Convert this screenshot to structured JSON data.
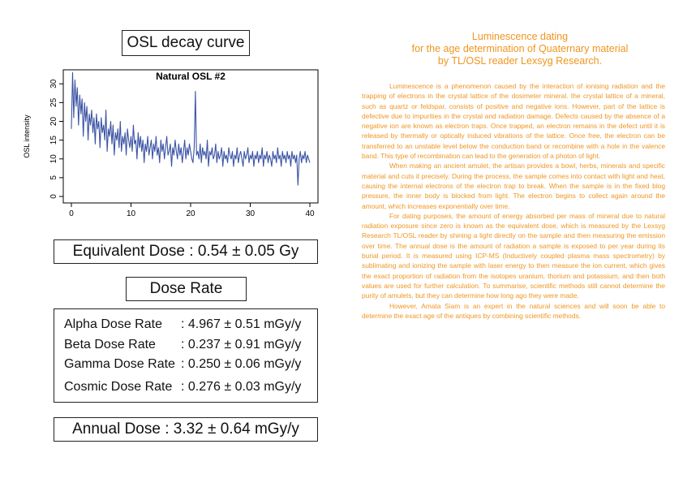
{
  "left_panel": {
    "chart_heading": "OSL decay curve",
    "equivalent_dose": "Equivalent Dose : 0.54 ± 0.05 Gy",
    "dose_rate_heading": "Dose Rate",
    "dose_rates": [
      {
        "label": "Alpha Dose Rate",
        "value": ": 4.967 ± 0.51 mGy/y"
      },
      {
        "label": "Beta Dose Rate",
        "value": ": 0.237 ± 0.91 mGy/y"
      },
      {
        "label": "Gamma Dose Rate",
        "value": ": 0.250 ± 0.06 mGy/y"
      },
      {
        "label": "Cosmic Dose Rate",
        "value": ": 0.276 ± 0.03 mGy/y"
      }
    ],
    "annual_dose": "Annual Dose : 3.32 ± 0.64 mGy/y"
  },
  "right_panel": {
    "title_lines": [
      "Luminescence dating",
      "for the age determination of Quaternary material",
      "by TL/OSL reader Lexsyg Research."
    ],
    "paragraphs": [
      "Luminescence is a phenomenon caused by the interaction of ionising radiation and the trapping of electrons in the crystal lattice of the dosimeter mineral. the crystal lattice of a mineral, such as quartz or feldspar, consists of positive and negative ions. However, part of the lattice is defective due to impurities in the crystal and radiation damage. Defects caused by the absence of a negative ion are known as electron traps. Once trapped, an electron remains in the defect until it is released by thermally or optically induced vibrations of the lattice. Once free, the electron can be transferred to an unstable level below the conduction band or recombine with a hole in the valence band. This type of recombination can lead to the generation of a photon of light.",
      "When making an ancient amulet, the artisan provides a bowl, herbs, minerals and specific material and cuts it precisely. During the process, the sample comes into contact with light and heat, causing the internal electrons of the electron trap to break. When the sample is in the fixed blog pressure, the inner body is blocked from light. The electron begins to collect again around the amount, which increases exponentially over time.",
      "For dating purposes, the amount of energy absorbed per mass of mineral due to natural radiation exposure since zero is known as the equivalent dose, which is measured by the Lexsyg Research TL/OSL reader by shining a light directly on the sample and then measuring the emission over time. The annual dose is the amount of radiation a sample is exposed to per year during its burial period. It is measured using ICP-MS (Inductively coupled plasma mass spectrometry) by sublimating and ionizing the sample with laser energy to then measure the ion current, which gives the exact proportion of radiation from the isotopes uranium, thorium and potassium, and then both values are used for further calculation. To summarise, scientific methods still cannot determine the purity of amulets, but they can determine how long ago they were made.",
      "However, Amata Siam is an expert in the natural sciences and will soon be able to determine the exact age of the antiques by combining scientific methods."
    ]
  },
  "chart_data": {
    "type": "line",
    "title": "Natural OSL #2",
    "xlabel": "",
    "ylabel": "OSL intensity",
    "xlim": [
      0,
      40
    ],
    "ylim": [
      0,
      32
    ],
    "xticks": [
      0,
      10,
      20,
      30,
      40
    ],
    "yticks": [
      0,
      5,
      10,
      15,
      20,
      25,
      30
    ],
    "grid": false,
    "series": [
      {
        "name": "",
        "color": "#3a53a4",
        "x": [
          0.0,
          0.2,
          0.4,
          0.6,
          0.8,
          1.0,
          1.2,
          1.4,
          1.6,
          1.8,
          2.0,
          2.2,
          2.4,
          2.6,
          2.8,
          3.0,
          3.2,
          3.4,
          3.6,
          3.8,
          4.0,
          4.2,
          4.4,
          4.6,
          4.8,
          5.0,
          5.2,
          5.4,
          5.6,
          5.8,
          6.0,
          6.2,
          6.4,
          6.6,
          6.8,
          7.0,
          7.2,
          7.4,
          7.6,
          7.8,
          8.0,
          8.2,
          8.4,
          8.6,
          8.8,
          9.0,
          9.2,
          9.4,
          9.6,
          9.8,
          10.0,
          10.2,
          10.4,
          10.6,
          10.8,
          11.0,
          11.2,
          11.4,
          11.6,
          11.8,
          12.0,
          12.2,
          12.4,
          12.6,
          12.8,
          13.0,
          13.2,
          13.4,
          13.6,
          13.8,
          14.0,
          14.2,
          14.4,
          14.6,
          14.8,
          15.0,
          15.2,
          15.4,
          15.6,
          15.8,
          16.0,
          16.2,
          16.4,
          16.6,
          16.8,
          17.0,
          17.2,
          17.4,
          17.6,
          17.8,
          18.0,
          18.2,
          18.4,
          18.6,
          18.8,
          19.0,
          19.2,
          19.4,
          19.6,
          19.8,
          20.0,
          20.2,
          20.4,
          20.6,
          20.8,
          21.0,
          21.2,
          21.4,
          21.6,
          21.8,
          22.0,
          22.2,
          22.4,
          22.6,
          22.8,
          23.0,
          23.2,
          23.4,
          23.6,
          23.8,
          24.0,
          24.2,
          24.4,
          24.6,
          24.8,
          25.0,
          25.2,
          25.4,
          25.6,
          25.8,
          26.0,
          26.2,
          26.4,
          26.6,
          26.8,
          27.0,
          27.2,
          27.4,
          27.6,
          27.8,
          28.0,
          28.2,
          28.4,
          28.6,
          28.8,
          29.0,
          29.2,
          29.4,
          29.6,
          29.8,
          30.0,
          30.2,
          30.4,
          30.6,
          30.8,
          31.0,
          31.2,
          31.4,
          31.6,
          31.8,
          32.0,
          32.2,
          32.4,
          32.6,
          32.8,
          33.0,
          33.2,
          33.4,
          33.6,
          33.8,
          34.0,
          34.2,
          34.4,
          34.6,
          34.8,
          35.0,
          35.2,
          35.4,
          35.6,
          35.8,
          36.0,
          36.2,
          36.4,
          36.6,
          36.8,
          37.0,
          37.2,
          37.4,
          37.6,
          37.8,
          38.0,
          38.2,
          38.4,
          38.6,
          38.8,
          39.0,
          39.2,
          39.4,
          39.6,
          39.8,
          40.0
        ],
        "y": [
          18,
          33,
          21,
          31,
          24,
          29,
          19,
          27,
          22,
          26,
          16,
          25,
          20,
          24,
          15,
          22,
          19,
          23,
          17,
          21,
          14,
          22,
          18,
          20,
          13,
          21,
          17,
          19,
          15,
          23,
          12,
          18,
          16,
          20,
          14,
          19,
          11,
          17,
          15,
          18,
          13,
          20,
          12,
          16,
          14,
          17,
          11,
          18,
          15,
          13,
          16,
          12,
          19,
          14,
          15,
          10,
          17,
          13,
          16,
          12,
          15,
          9,
          14,
          12,
          16,
          11,
          13,
          15,
          10,
          14,
          12,
          16,
          11,
          13,
          9,
          15,
          12,
          14,
          10,
          13,
          16,
          11,
          12,
          14,
          8,
          13,
          11,
          15,
          12,
          10,
          14,
          11,
          13,
          9,
          12,
          15,
          10,
          13,
          11,
          14,
          12,
          10,
          9,
          13,
          28,
          11,
          12,
          10,
          14,
          9,
          13,
          11,
          12,
          10,
          15,
          8,
          12,
          11,
          13,
          10,
          11,
          14,
          9,
          12,
          10,
          11,
          13,
          8,
          12,
          10,
          11,
          9,
          13,
          11,
          10,
          12,
          8,
          11,
          10,
          13,
          9,
          11,
          12,
          10,
          8,
          12,
          10,
          11,
          13,
          9,
          11,
          10,
          12,
          8,
          11,
          10,
          12,
          9,
          11,
          10,
          13,
          8,
          11,
          10,
          12,
          9,
          11,
          10,
          8,
          12,
          10,
          11,
          9,
          13,
          10,
          11,
          8,
          12,
          10,
          11,
          9,
          12,
          10,
          11,
          8,
          12,
          10,
          11,
          9,
          11,
          3,
          10,
          12,
          9,
          11,
          10,
          12,
          9,
          11,
          10,
          9
        ]
      }
    ]
  }
}
